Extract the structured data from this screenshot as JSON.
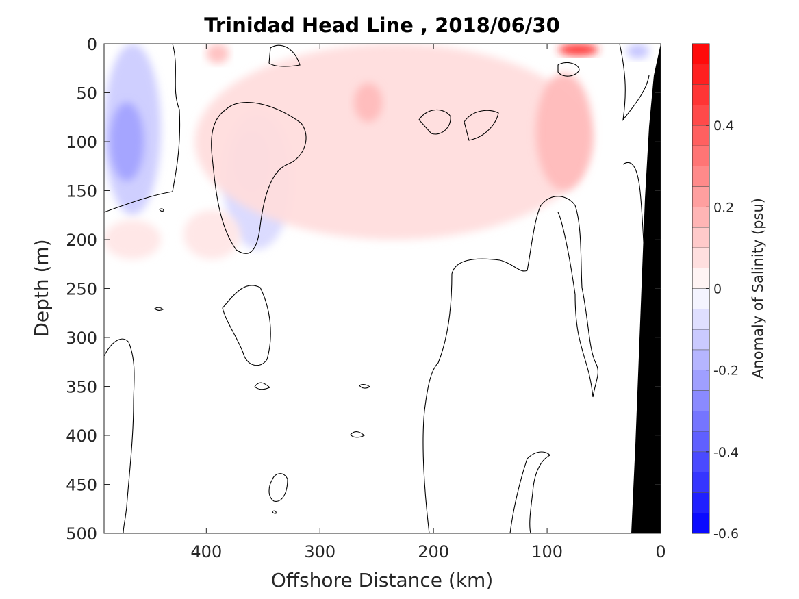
{
  "chart_data": {
    "type": "heatmap",
    "title": "Trinidad Head Line , 2018/06/30",
    "xlabel": "Offshore Distance (km)",
    "ylabel": "Depth (m)",
    "xlim": [
      490,
      0
    ],
    "ylim": [
      0,
      500
    ],
    "x_ticks": [
      400,
      300,
      200,
      100,
      0
    ],
    "y_ticks": [
      0,
      50,
      100,
      150,
      200,
      250,
      300,
      350,
      400,
      450,
      500
    ],
    "grid": false,
    "colorbar": {
      "label": "Anomaly of Salinity (psu)",
      "range": [
        -0.6,
        0.6
      ],
      "ticks": [
        -0.6,
        -0.4,
        -0.2,
        0,
        0.2,
        0.4
      ],
      "tick_labels": [
        "-0.6",
        "-0.4",
        "-0.2",
        "0",
        "0.2",
        "0.4"
      ],
      "levels": [
        -0.6,
        -0.55,
        -0.5,
        -0.45,
        -0.4,
        -0.35,
        -0.3,
        -0.25,
        -0.2,
        -0.15,
        -0.1,
        -0.05,
        0,
        0.05,
        0.1,
        0.15,
        0.2,
        0.25,
        0.3,
        0.35,
        0.4,
        0.45,
        0.5,
        0.55,
        0.6
      ],
      "colormap": "blue-white-red"
    },
    "anomaly_regions": [
      {
        "x": [
          490,
          440
        ],
        "depth": [
          0,
          175
        ],
        "value": -0.12
      },
      {
        "x": [
          485,
          455
        ],
        "depth": [
          60,
          140
        ],
        "value": -0.22
      },
      {
        "x": [
          385,
          325
        ],
        "depth": [
          70,
          210
        ],
        "value": -0.09
      },
      {
        "x": [
          375,
          345
        ],
        "depth": [
          90,
          150
        ],
        "value": -0.15
      },
      {
        "x": [
          30,
          10
        ],
        "depth": [
          0,
          15
        ],
        "value": -0.14
      },
      {
        "x": [
          410,
          60
        ],
        "depth": [
          0,
          200
        ],
        "value": 0.08
      },
      {
        "x": [
          400,
          380
        ],
        "depth": [
          0,
          20
        ],
        "value": 0.15
      },
      {
        "x": [
          270,
          245
        ],
        "depth": [
          40,
          80
        ],
        "value": 0.16
      },
      {
        "x": [
          110,
          60
        ],
        "depth": [
          30,
          150
        ],
        "value": 0.16
      },
      {
        "x": [
          90,
          55
        ],
        "depth": [
          0,
          12
        ],
        "value": 0.5
      },
      {
        "x": [
          490,
          440
        ],
        "depth": [
          180,
          220
        ],
        "value": 0.06
      },
      {
        "x": [
          420,
          370
        ],
        "depth": [
          170,
          220
        ],
        "value": 0.06
      }
    ],
    "zero_contour": true,
    "bathymetry_fill": "#000000"
  }
}
